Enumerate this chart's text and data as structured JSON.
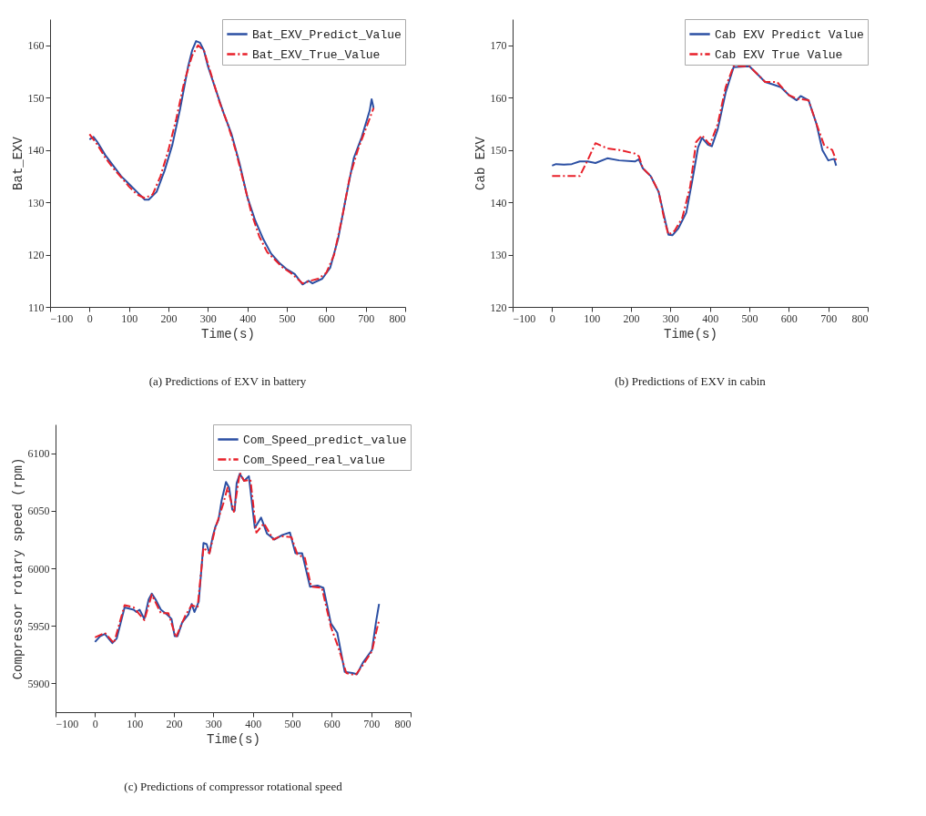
{
  "chart_data": [
    {
      "type": "line",
      "title": "(a) Predictions of EXV in battery",
      "xlabel": "Time(s)",
      "ylabel": "Bat_EXV",
      "xlim": [
        -100,
        800
      ],
      "ylim": [
        110,
        165
      ],
      "xticks": [
        -100,
        0,
        100,
        200,
        300,
        400,
        500,
        600,
        700,
        800
      ],
      "yticks": [
        110,
        120,
        130,
        140,
        150,
        160
      ],
      "grid": false,
      "legend": "top right",
      "series": [
        {
          "name": "Bat_EXV_Predict_Value",
          "color": "#2b4fa3",
          "line_style": "solid",
          "x": [
            0,
            10,
            20,
            40,
            60,
            80,
            100,
            120,
            140,
            150,
            170,
            190,
            210,
            230,
            250,
            260,
            270,
            280,
            290,
            300,
            320,
            340,
            360,
            380,
            400,
            420,
            440,
            460,
            480,
            500,
            520,
            540,
            555,
            565,
            590,
            610,
            630,
            650,
            670,
            690,
            710,
            715,
            720
          ],
          "values": [
            142,
            142.5,
            141.5,
            139,
            137,
            135,
            133.5,
            132,
            130.5,
            130.5,
            132,
            136,
            141,
            148,
            156,
            159,
            160.8,
            160.5,
            159,
            156,
            151.5,
            147,
            143,
            137.5,
            131,
            126.5,
            123,
            120.2,
            118.5,
            117.2,
            116.3,
            114.3,
            115,
            114.5,
            115.4,
            117.5,
            123,
            131,
            138.5,
            142.5,
            147.5,
            149.7,
            148
          ]
        },
        {
          "name": "Bat_EXV_True_Value",
          "color": "#e8202a",
          "line_style": "dashed",
          "x": [
            0,
            20,
            40,
            60,
            80,
            100,
            120,
            140,
            160,
            180,
            200,
            220,
            240,
            260,
            275,
            290,
            310,
            330,
            350,
            370,
            390,
            410,
            430,
            450,
            470,
            490,
            510,
            540,
            560,
            580,
            600,
            620,
            640,
            660,
            680,
            700,
            720
          ],
          "values": [
            143,
            141,
            138.5,
            136.5,
            134.8,
            133,
            131.5,
            130.8,
            131.5,
            135,
            140,
            146,
            153,
            158,
            160,
            159,
            154,
            149,
            145,
            140,
            134,
            128,
            123.5,
            120.5,
            119,
            117.5,
            116.5,
            114.5,
            115,
            115.4,
            116.5,
            120,
            127,
            135,
            140,
            144,
            148
          ]
        }
      ]
    },
    {
      "type": "line",
      "title": "(b) Predictions of EXV in cabin",
      "xlabel": "Time(s)",
      "ylabel": "Cab EXV",
      "xlim": [
        -100,
        800
      ],
      "ylim": [
        120,
        175
      ],
      "xticks": [
        -100,
        0,
        100,
        200,
        300,
        400,
        500,
        600,
        700,
        800
      ],
      "yticks": [
        120,
        130,
        140,
        150,
        160,
        170
      ],
      "grid": false,
      "legend": "top right",
      "series": [
        {
          "name": "Cab EXV Predict Value",
          "color": "#2b4fa3",
          "line_style": "solid",
          "x": [
            0,
            10,
            30,
            50,
            70,
            90,
            110,
            140,
            170,
            210,
            220,
            230,
            250,
            270,
            285,
            295,
            305,
            320,
            340,
            355,
            370,
            380,
            395,
            405,
            420,
            440,
            460,
            500,
            520,
            540,
            560,
            580,
            600,
            620,
            630,
            650,
            670,
            685,
            700,
            715,
            720
          ],
          "values": [
            147,
            147.3,
            147.2,
            147.3,
            147.8,
            147.8,
            147.5,
            148.4,
            148,
            147.8,
            148.2,
            146.5,
            145,
            142,
            137,
            133.8,
            133.7,
            135,
            138,
            144,
            150.5,
            152.3,
            151,
            150.7,
            154,
            161,
            165.8,
            166,
            164.5,
            163,
            162.5,
            162,
            160.5,
            159.5,
            160.3,
            159.5,
            155,
            150,
            148,
            148.3,
            147
          ]
        },
        {
          "name": "Cab EXV True Value",
          "color": "#e8202a",
          "line_style": "dashed",
          "x": [
            0,
            70,
            90,
            110,
            140,
            170,
            210,
            220,
            230,
            250,
            270,
            285,
            295,
            310,
            330,
            350,
            365,
            380,
            400,
            420,
            440,
            460,
            500,
            520,
            540,
            570,
            600,
            620,
            650,
            670,
            690,
            710,
            720
          ],
          "values": [
            145,
            145,
            148,
            151.3,
            150.3,
            150,
            149.3,
            148.8,
            146.5,
            145,
            142,
            136.5,
            133.8,
            134.5,
            137,
            143,
            151.5,
            152.8,
            151,
            155,
            162,
            166,
            166,
            164.5,
            163,
            163,
            160.5,
            159.8,
            159.5,
            155,
            150.8,
            150,
            148
          ]
        }
      ]
    },
    {
      "type": "line",
      "title": "(c) Predictions of compressor rotational speed",
      "xlabel": "Time(s)",
      "ylabel": "Compressor rotary speed (rpm)",
      "xlim": [
        -100,
        800
      ],
      "ylim": [
        5875,
        6125
      ],
      "xticks": [
        -100,
        0,
        100,
        200,
        300,
        400,
        500,
        600,
        700,
        800
      ],
      "yticks": [
        5900,
        5950,
        6000,
        6050,
        6100
      ],
      "grid": false,
      "legend": "top right",
      "series": [
        {
          "name": "Com_Speed_predict_value",
          "color": "#2b4fa3",
          "line_style": "solid",
          "x": [
            0,
            13,
            25,
            44,
            55,
            75,
            98,
            105,
            113,
            125,
            136,
            144,
            155,
            167,
            182,
            194,
            202,
            209,
            221,
            237,
            245,
            252,
            263,
            275,
            283,
            290,
            298,
            305,
            313,
            321,
            332,
            340,
            348,
            354,
            359,
            367,
            378,
            390,
            405,
            421,
            436,
            455,
            475,
            494,
            508,
            525,
            545,
            564,
            579,
            598,
            614,
            633,
            652,
            664,
            679,
            702,
            713,
            720
          ],
          "values": [
            5936,
            5941,
            5943,
            5935,
            5939,
            5966,
            5964,
            5962,
            5964,
            5956,
            5973,
            5978,
            5972,
            5964,
            5960,
            5956,
            5941,
            5941,
            5953,
            5960,
            5969,
            5962,
            5971,
            6022,
            6021,
            6013,
            6027,
            6036,
            6042,
            6059,
            6075,
            6070,
            6051,
            6050,
            6074,
            6082,
            6076,
            6080,
            6035,
            6044,
            6030,
            6025,
            6029,
            6031,
            6013,
            6013,
            5984,
            5985,
            5983,
            5952,
            5944,
            5910,
            5909,
            5908,
            5918,
            5929,
            5955,
            5969
          ]
        },
        {
          "name": "Com_Speed_real_value",
          "color": "#e8202a",
          "line_style": "dashed",
          "x": [
            0,
            25,
            48,
            75,
            98,
            125,
            144,
            167,
            186,
            205,
            229,
            245,
            260,
            275,
            290,
            305,
            325,
            336,
            352,
            367,
            378,
            394,
            409,
            428,
            452,
            471,
            498,
            513,
            532,
            548,
            575,
            598,
            617,
            637,
            660,
            679,
            702,
            713,
            720
          ],
          "values": [
            5940,
            5944,
            5935,
            5968,
            5966,
            5955,
            5977,
            5961,
            5961,
            5940,
            5959,
            5968,
            5966,
            6018,
            6013,
            6035,
            6056,
            6070,
            6049,
            6083,
            6076,
            6077,
            6031,
            6039,
            6025,
            6028,
            6027,
            6012,
            6009,
            5984,
            5983,
            5949,
            5931,
            5909,
            5907,
            5916,
            5928,
            5945,
            5955
          ]
        }
      ]
    }
  ]
}
